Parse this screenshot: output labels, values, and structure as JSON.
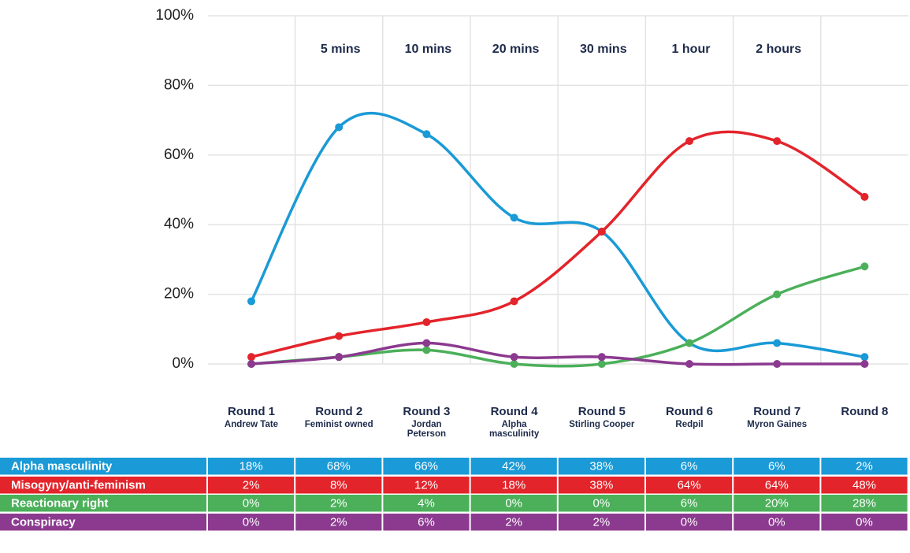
{
  "chart_data": {
    "type": "line",
    "categories": [
      "Round 1",
      "Round 2",
      "Round 3",
      "Round 4",
      "Round 5",
      "Round 6",
      "Round 7",
      "Round 8"
    ],
    "category_sublabels": [
      "Andrew Tate",
      "Feminist owned",
      "Jordan Peterson",
      "Alpha masculinity",
      "Stirling Cooper",
      "Redpil",
      "Myron Gaines",
      null
    ],
    "time_labels": [
      null,
      "5 mins",
      "10 mins",
      "20 mins",
      "30 mins",
      "1 hour",
      "2 hours",
      null
    ],
    "ylim": [
      0,
      100
    ],
    "yticks": [
      {
        "value": 0,
        "label": "0%"
      },
      {
        "value": 20,
        "label": "20%"
      },
      {
        "value": 40,
        "label": "40%"
      },
      {
        "value": 60,
        "label": "60%"
      },
      {
        "value": 80,
        "label": "80%"
      },
      {
        "value": 100,
        "label": "100%"
      }
    ],
    "grid": true,
    "series": [
      {
        "name": "Alpha masculinity",
        "color": "#1a9ad6",
        "values": [
          18,
          68,
          66,
          42,
          38,
          6,
          6,
          2
        ],
        "value_labels": [
          "18%",
          "68%",
          "66%",
          "42%",
          "38%",
          "6%",
          "6%",
          "2%"
        ]
      },
      {
        "name": "Misogyny/anti-feminism",
        "color": "#e3242b",
        "values": [
          2,
          8,
          12,
          18,
          38,
          64,
          64,
          48
        ],
        "value_labels": [
          "2%",
          "8%",
          "12%",
          "18%",
          "38%",
          "64%",
          "64%",
          "48%"
        ]
      },
      {
        "name": "Reactionary right",
        "color": "#4cb05a",
        "values": [
          0,
          2,
          4,
          0,
          0,
          6,
          20,
          28
        ],
        "value_labels": [
          "0%",
          "2%",
          "4%",
          "0%",
          "0%",
          "6%",
          "20%",
          "28%"
        ]
      },
      {
        "name": "Conspiracy",
        "color": "#8b3a8f",
        "values": [
          0,
          2,
          6,
          2,
          2,
          0,
          0,
          0
        ],
        "value_labels": [
          "0%",
          "2%",
          "6%",
          "2%",
          "2%",
          "0%",
          "0%",
          "0%"
        ]
      }
    ]
  }
}
